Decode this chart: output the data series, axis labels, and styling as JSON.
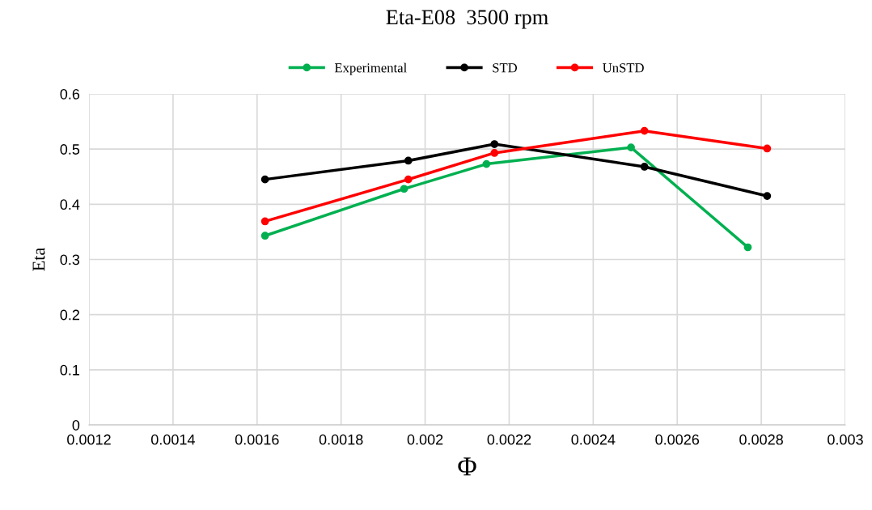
{
  "chart_data": {
    "type": "line",
    "title": "Eta-E08  3500 rpm",
    "xlabel": "Φ",
    "ylabel": "Eta",
    "series": [
      {
        "name": "Experimental",
        "color": "#00b050",
        "x": [
          0.001619,
          0.00195,
          0.002146,
          0.00249,
          0.002768
        ],
        "values": [
          0.343,
          0.428,
          0.473,
          0.503,
          0.322
        ]
      },
      {
        "name": "STD",
        "color": "#000000",
        "x": [
          0.001619,
          0.00196,
          0.002165,
          0.002522,
          0.002814
        ],
        "values": [
          0.445,
          0.479,
          0.509,
          0.468,
          0.415
        ]
      },
      {
        "name": "UnSTD",
        "color": "#ff0000",
        "x": [
          0.001619,
          0.00196,
          0.002165,
          0.002522,
          0.002814
        ],
        "values": [
          0.369,
          0.445,
          0.493,
          0.533,
          0.501
        ]
      }
    ],
    "xlim": [
      0.0012,
      0.003
    ],
    "xticks": [
      0.0012,
      0.0014,
      0.0016,
      0.0018,
      0.002,
      0.0022,
      0.0024,
      0.0026,
      0.0028,
      0.003
    ],
    "ylim": [
      0,
      0.6
    ],
    "yticks": [
      0,
      0.1,
      0.2,
      0.3,
      0.4,
      0.5,
      0.6
    ],
    "grid": true,
    "legend": "top",
    "marker": "circle",
    "line_style": "solid"
  }
}
